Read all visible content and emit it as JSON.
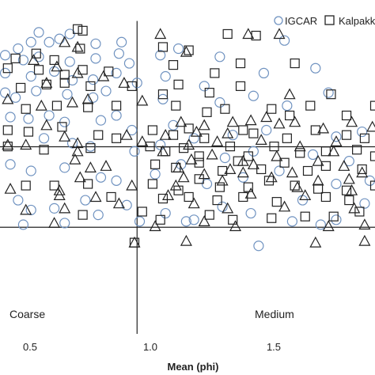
{
  "chart_data": {
    "type": "scatter",
    "title": "",
    "xlabel": "Mean (phi)",
    "ylabel": "",
    "xlim": [
      0.45,
      1.9
    ],
    "ylim": [
      0,
      1
    ],
    "xticks": [
      "0.5",
      "1.0",
      "1.5"
    ],
    "grid": false,
    "legend_position": "top-right",
    "region_labels": [
      "Coarse",
      "Medium"
    ],
    "dividers": {
      "vertical_x": 0.98,
      "horizontal_y": [
        0.574,
        0.327
      ]
    },
    "series": [
      {
        "name": "IGCAR",
        "marker": "circle",
        "color": "#6f92c0",
        "points": [
          [
            0.6,
            0.925
          ],
          [
            0.72,
            0.92
          ],
          [
            0.57,
            0.895
          ],
          [
            0.52,
            0.875
          ],
          [
            0.64,
            0.895
          ],
          [
            0.68,
            0.905
          ],
          [
            0.82,
            0.89
          ],
          [
            0.92,
            0.895
          ],
          [
            0.47,
            0.855
          ],
          [
            0.54,
            0.84
          ],
          [
            0.6,
            0.85
          ],
          [
            0.72,
            0.835
          ],
          [
            0.82,
            0.845
          ],
          [
            0.91,
            0.86
          ],
          [
            0.95,
            0.83
          ],
          [
            1.07,
            0.855
          ],
          [
            1.14,
            0.875
          ],
          [
            1.3,
            0.85
          ],
          [
            1.55,
            0.9
          ],
          [
            0.47,
            0.8
          ],
          [
            0.57,
            0.79
          ],
          [
            0.66,
            0.805
          ],
          [
            0.73,
            0.778
          ],
          [
            0.81,
            0.78
          ],
          [
            0.9,
            0.8
          ],
          [
            0.98,
            0.77
          ],
          [
            1.09,
            0.79
          ],
          [
            1.24,
            0.76
          ],
          [
            1.47,
            0.8
          ],
          [
            1.67,
            0.815
          ],
          [
            0.47,
            0.74
          ],
          [
            0.51,
            0.725
          ],
          [
            0.59,
            0.745
          ],
          [
            0.71,
            0.735
          ],
          [
            0.81,
            0.725
          ],
          [
            0.86,
            0.745
          ],
          [
            1.08,
            0.72
          ],
          [
            1.3,
            0.71
          ],
          [
            1.43,
            0.73
          ],
          [
            1.56,
            0.7
          ],
          [
            1.72,
            0.74
          ],
          [
            0.49,
            0.665
          ],
          [
            0.56,
            0.66
          ],
          [
            0.64,
            0.67
          ],
          [
            0.7,
            0.65
          ],
          [
            0.84,
            0.655
          ],
          [
            0.9,
            0.67
          ],
          [
            0.96,
            0.625
          ],
          [
            1.12,
            0.64
          ],
          [
            1.35,
            0.61
          ],
          [
            1.48,
            0.625
          ],
          [
            1.75,
            0.605
          ],
          [
            1.85,
            0.62
          ],
          [
            0.62,
            0.6
          ],
          [
            0.73,
            0.585
          ],
          [
            0.8,
            0.575
          ],
          [
            0.97,
            0.56
          ],
          [
            1.07,
            0.58
          ],
          [
            1.2,
            0.6
          ],
          [
            1.32,
            0.54
          ],
          [
            1.43,
            0.56
          ],
          [
            1.66,
            0.55
          ],
          [
            1.8,
            0.53
          ],
          [
            0.49,
            0.52
          ],
          [
            0.57,
            0.5
          ],
          [
            0.7,
            0.51
          ],
          [
            0.84,
            0.48
          ],
          [
            0.9,
            0.47
          ],
          [
            1.05,
            0.49
          ],
          [
            1.15,
            0.52
          ],
          [
            1.25,
            0.46
          ],
          [
            1.39,
            0.48
          ],
          [
            1.53,
            0.5
          ],
          [
            1.75,
            0.46
          ],
          [
            1.88,
            0.47
          ],
          [
            0.52,
            0.41
          ],
          [
            0.57,
            0.38
          ],
          [
            0.66,
            0.385
          ],
          [
            0.78,
            0.41
          ],
          [
            0.94,
            0.395
          ],
          [
            1.09,
            0.37
          ],
          [
            1.2,
            0.35
          ],
          [
            1.31,
            0.39
          ],
          [
            1.42,
            0.37
          ],
          [
            1.62,
            0.41
          ],
          [
            1.75,
            0.35
          ],
          [
            1.86,
            0.4
          ],
          [
            0.54,
            0.335
          ],
          [
            0.7,
            0.34
          ],
          [
            0.83,
            0.365
          ],
          [
            0.99,
            0.345
          ],
          [
            1.17,
            0.345
          ],
          [
            1.45,
            0.27
          ],
          [
            1.58,
            0.345
          ],
          [
            1.69,
            0.335
          ]
        ]
      },
      {
        "name": "Kalpakkam",
        "marker": "square",
        "color": "#222222",
        "points": [
          [
            0.75,
            0.935
          ],
          [
            0.77,
            0.93
          ],
          [
            0.59,
            0.86
          ],
          [
            0.51,
            0.845
          ],
          [
            0.66,
            0.84
          ],
          [
            0.76,
            0.875
          ],
          [
            1.08,
            0.88
          ],
          [
            1.18,
            0.87
          ],
          [
            1.33,
            0.92
          ],
          [
            1.44,
            0.915
          ],
          [
            0.48,
            0.815
          ],
          [
            0.6,
            0.81
          ],
          [
            0.7,
            0.795
          ],
          [
            0.77,
            0.81
          ],
          [
            0.87,
            0.805
          ],
          [
            1.12,
            0.825
          ],
          [
            1.28,
            0.8
          ],
          [
            1.38,
            0.83
          ],
          [
            1.59,
            0.83
          ],
          [
            0.53,
            0.755
          ],
          [
            0.63,
            0.765
          ],
          [
            0.7,
            0.77
          ],
          [
            0.8,
            0.76
          ],
          [
            0.96,
            0.76
          ],
          [
            1.08,
            0.735
          ],
          [
            1.14,
            0.765
          ],
          [
            1.26,
            0.74
          ],
          [
            1.38,
            0.76
          ],
          [
            1.73,
            0.735
          ],
          [
            0.55,
            0.69
          ],
          [
            0.67,
            0.7
          ],
          [
            0.79,
            0.695
          ],
          [
            0.9,
            0.7
          ],
          [
            1.13,
            0.7
          ],
          [
            1.25,
            0.68
          ],
          [
            1.32,
            0.69
          ],
          [
            1.5,
            0.69
          ],
          [
            1.57,
            0.67
          ],
          [
            1.65,
            0.7
          ],
          [
            1.79,
            0.67
          ],
          [
            1.9,
            0.7
          ],
          [
            0.48,
            0.625
          ],
          [
            0.56,
            0.62
          ],
          [
            0.69,
            0.635
          ],
          [
            0.83,
            0.61
          ],
          [
            0.9,
            0.6
          ],
          [
            1.04,
            0.625
          ],
          [
            1.12,
            0.61
          ],
          [
            1.18,
            0.63
          ],
          [
            1.24,
            0.6
          ],
          [
            1.39,
            0.625
          ],
          [
            1.43,
            0.615
          ],
          [
            1.56,
            0.6
          ],
          [
            1.67,
            0.625
          ],
          [
            1.79,
            0.61
          ],
          [
            1.86,
            0.6
          ],
          [
            0.48,
            0.575
          ],
          [
            0.62,
            0.565
          ],
          [
            0.8,
            0.57
          ],
          [
            1.03,
            0.575
          ],
          [
            1.09,
            0.56
          ],
          [
            1.16,
            0.57
          ],
          [
            1.22,
            0.545
          ],
          [
            1.34,
            0.575
          ],
          [
            1.41,
            0.545
          ],
          [
            1.51,
            0.575
          ],
          [
            1.61,
            0.555
          ],
          [
            1.71,
            0.56
          ],
          [
            1.83,
            0.565
          ],
          [
            1.9,
            0.545
          ],
          [
            1.05,
            0.52
          ],
          [
            1.13,
            0.51
          ],
          [
            1.22,
            0.525
          ],
          [
            1.31,
            0.5
          ],
          [
            1.37,
            0.53
          ],
          [
            1.46,
            0.505
          ],
          [
            1.55,
            0.525
          ],
          [
            1.64,
            0.5
          ],
          [
            1.71,
            0.515
          ],
          [
            1.85,
            0.505
          ],
          [
            0.55,
            0.455
          ],
          [
            0.66,
            0.455
          ],
          [
            0.79,
            0.46
          ],
          [
            1.04,
            0.46
          ],
          [
            1.14,
            0.44
          ],
          [
            1.22,
            0.475
          ],
          [
            1.3,
            0.45
          ],
          [
            1.41,
            0.45
          ],
          [
            1.49,
            0.47
          ],
          [
            1.59,
            0.455
          ],
          [
            1.68,
            0.445
          ],
          [
            1.79,
            0.44
          ],
          [
            1.9,
            0.455
          ],
          [
            0.88,
            0.42
          ],
          [
            1.08,
            0.415
          ],
          [
            1.18,
            0.42
          ],
          [
            1.29,
            0.41
          ],
          [
            1.39,
            0.42
          ],
          [
            1.52,
            0.405
          ],
          [
            1.71,
            0.42
          ],
          [
            1.8,
            0.41
          ],
          [
            0.77,
            0.365
          ],
          [
            1.0,
            0.375
          ],
          [
            1.07,
            0.35
          ],
          [
            1.26,
            0.365
          ],
          [
            1.35,
            0.35
          ],
          [
            1.5,
            0.355
          ],
          [
            1.63,
            0.36
          ],
          [
            1.74,
            0.36
          ],
          [
            1.84,
            0.375
          ],
          [
            0.97,
            0.28
          ]
        ]
      },
      {
        "name": "",
        "marker": "triangle",
        "color": "#222222",
        "points": [
          [
            1.07,
            0.92
          ],
          [
            1.41,
            0.92
          ],
          [
            1.53,
            0.92
          ],
          [
            0.7,
            0.895
          ],
          [
            0.75,
            0.88
          ],
          [
            1.17,
            0.865
          ],
          [
            0.58,
            0.84
          ],
          [
            0.67,
            0.82
          ],
          [
            0.75,
            0.8
          ],
          [
            0.85,
            0.79
          ],
          [
            0.63,
            0.77
          ],
          [
            0.79,
            0.72
          ],
          [
            0.93,
            0.77
          ],
          [
            1.57,
            0.735
          ],
          [
            0.48,
            0.72
          ],
          [
            0.61,
            0.7
          ],
          [
            0.73,
            0.71
          ],
          [
            1.0,
            0.715
          ],
          [
            1.48,
            0.665
          ],
          [
            1.24,
            0.64
          ],
          [
            1.53,
            0.645
          ],
          [
            0.63,
            0.64
          ],
          [
            1.15,
            0.65
          ],
          [
            1.35,
            0.65
          ],
          [
            1.42,
            0.655
          ],
          [
            1.59,
            0.65
          ],
          [
            1.89,
            0.635
          ],
          [
            0.7,
            0.605
          ],
          [
            0.94,
            0.61
          ],
          [
            1.33,
            0.615
          ],
          [
            1.7,
            0.63
          ],
          [
            1.81,
            0.65
          ],
          [
            1.09,
            0.61
          ],
          [
            1.21,
            0.62
          ],
          [
            0.48,
            0.58
          ],
          [
            0.55,
            0.58
          ],
          [
            0.75,
            0.585
          ],
          [
            1.0,
            0.59
          ],
          [
            1.18,
            0.58
          ],
          [
            1.29,
            0.59
          ],
          [
            1.46,
            0.595
          ],
          [
            1.61,
            0.575
          ],
          [
            1.75,
            0.59
          ],
          [
            0.75,
            0.56
          ],
          [
            1.08,
            0.56
          ],
          [
            1.19,
            0.535
          ],
          [
            1.27,
            0.55
          ],
          [
            1.39,
            0.53
          ],
          [
            1.52,
            0.545
          ],
          [
            1.68,
            0.53
          ],
          [
            1.74,
            0.56
          ],
          [
            0.74,
            0.535
          ],
          [
            0.8,
            0.51
          ],
          [
            1.14,
            0.51
          ],
          [
            1.34,
            0.505
          ],
          [
            1.43,
            0.52
          ],
          [
            1.58,
            0.495
          ],
          [
            1.78,
            0.515
          ],
          [
            0.86,
            0.515
          ],
          [
            0.76,
            0.48
          ],
          [
            1.16,
            0.48
          ],
          [
            1.24,
            0.49
          ],
          [
            1.39,
            0.495
          ],
          [
            1.5,
            0.48
          ],
          [
            1.68,
            0.47
          ],
          [
            1.85,
            0.495
          ],
          [
            0.49,
            0.445
          ],
          [
            0.68,
            0.44
          ],
          [
            0.96,
            0.455
          ],
          [
            1.13,
            0.455
          ],
          [
            1.31,
            0.47
          ],
          [
            1.6,
            0.45
          ],
          [
            1.8,
            0.475
          ],
          [
            0.68,
            0.425
          ],
          [
            0.82,
            0.42
          ],
          [
            1.1,
            0.425
          ],
          [
            1.2,
            0.4
          ],
          [
            1.42,
            0.43
          ],
          [
            1.63,
            0.425
          ],
          [
            1.81,
            0.44
          ],
          [
            0.55,
            0.38
          ],
          [
            0.7,
            0.385
          ],
          [
            0.91,
            0.4
          ],
          [
            1.33,
            0.385
          ],
          [
            1.55,
            0.39
          ],
          [
            1.82,
            0.385
          ],
          [
            0.66,
            0.34
          ],
          [
            1.05,
            0.33
          ],
          [
            1.24,
            0.345
          ],
          [
            1.36,
            0.33
          ],
          [
            1.72,
            0.33
          ],
          [
            1.86,
            0.335
          ],
          [
            0.97,
            0.28
          ],
          [
            1.17,
            0.285
          ],
          [
            1.67,
            0.28
          ],
          [
            1.86,
            0.285
          ]
        ]
      }
    ]
  }
}
